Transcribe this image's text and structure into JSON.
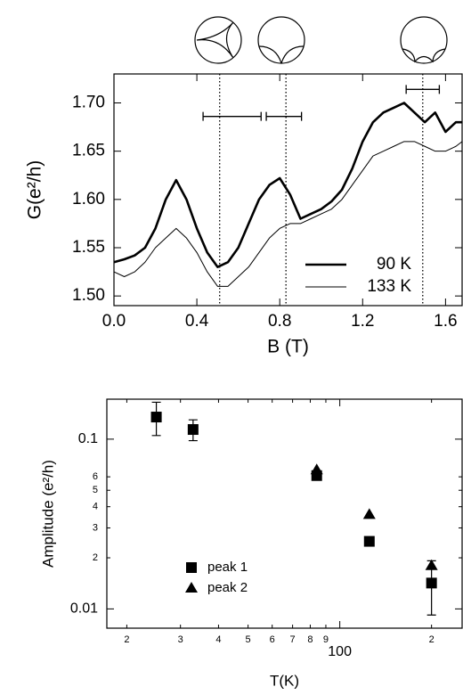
{
  "chart_data": [
    {
      "type": "line",
      "x_label": "B (T)",
      "y_label": "G(e²/h)",
      "x": [
        0,
        0.05,
        0.1,
        0.15,
        0.2,
        0.25,
        0.3,
        0.35,
        0.4,
        0.45,
        0.5,
        0.55,
        0.6,
        0.65,
        0.7,
        0.75,
        0.8,
        0.85,
        0.9,
        0.95,
        1.0,
        1.05,
        1.1,
        1.15,
        1.2,
        1.25,
        1.3,
        1.35,
        1.4,
        1.45,
        1.5,
        1.55,
        1.6,
        1.65,
        1.68
      ],
      "series": [
        {
          "name": "90 K",
          "color": "#000000",
          "values": [
            1.535,
            1.538,
            1.542,
            1.55,
            1.57,
            1.6,
            1.62,
            1.6,
            1.57,
            1.545,
            1.53,
            1.535,
            1.55,
            1.575,
            1.6,
            1.615,
            1.622,
            1.605,
            1.58,
            1.585,
            1.59,
            1.598,
            1.61,
            1.632,
            1.66,
            1.68,
            1.69,
            1.695,
            1.7,
            1.69,
            1.68,
            1.69,
            1.67,
            1.68,
            1.68
          ]
        },
        {
          "name": "133 K",
          "color": "#000000",
          "values": [
            1.525,
            1.52,
            1.525,
            1.535,
            1.55,
            1.56,
            1.57,
            1.56,
            1.545,
            1.525,
            1.51,
            1.51,
            1.52,
            1.53,
            1.545,
            1.56,
            1.57,
            1.575,
            1.575,
            1.58,
            1.585,
            1.59,
            1.6,
            1.615,
            1.63,
            1.645,
            1.65,
            1.655,
            1.66,
            1.66,
            1.655,
            1.65,
            1.65,
            1.655,
            1.66
          ]
        }
      ],
      "xlim": [
        0,
        1.68
      ],
      "ylim": [
        1.49,
        1.73
      ],
      "xticks": [
        {
          "value": 0,
          "label": "0.0"
        },
        0.4,
        0.8,
        1.2,
        1.6
      ],
      "yticks": [
        {
          "value": 1.5,
          "label": "1.50"
        },
        1.55,
        {
          "value": 1.6,
          "label": "1.60"
        },
        1.65,
        {
          "value": 1.7,
          "label": "1.70"
        }
      ],
      "vlines": [
        0.51,
        0.83,
        1.49
      ],
      "hbars": [
        {
          "x": 0.57,
          "y": 1.686,
          "err": 0.14
        },
        {
          "x": 0.82,
          "y": 1.686,
          "err": 0.085
        },
        {
          "x": 1.49,
          "y": 1.714,
          "err": 0.08
        }
      ],
      "legend": "lower right"
    },
    {
      "type": "scatter",
      "x_label": "T(K)",
      "y_label": "Amplitude (e²/h)",
      "log_x": true,
      "log_y": true,
      "series": [
        {
          "name": "peak 1",
          "marker": "square",
          "color": "#000000",
          "x": [
            25,
            33,
            84,
            125,
            200
          ],
          "values": [
            0.135,
            0.114,
            0.061,
            0.025,
            0.0142
          ],
          "errors": [
            0.03,
            0.016,
            null,
            null,
            0.005
          ]
        },
        {
          "name": "peak 2",
          "marker": "triangle",
          "color": "#000000",
          "x": [
            84,
            125,
            200
          ],
          "values": [
            0.066,
            0.036,
            0.018
          ]
        }
      ],
      "xlim": [
        17.2,
        252
      ],
      "ylim": [
        0.0077,
        0.172
      ],
      "xticks": [
        {
          "value": 20,
          "label": "2"
        },
        {
          "value": 30,
          "label": "3"
        },
        {
          "value": 40,
          "label": "4"
        },
        {
          "value": 50,
          "label": "5"
        },
        {
          "value": 60,
          "label": "6"
        },
        {
          "value": 70,
          "label": "7"
        },
        {
          "value": 80,
          "label": "8"
        },
        {
          "value": 90,
          "label": "9"
        },
        100,
        {
          "value": 200,
          "label": "2"
        }
      ],
      "yticks": [
        {
          "value": 0.01,
          "label": "0.01"
        },
        {
          "value": 0.02,
          "label": "2"
        },
        {
          "value": 0.03,
          "label": "3"
        },
        {
          "value": 0.04,
          "label": "4"
        },
        {
          "value": 0.05,
          "label": "5"
        },
        {
          "value": 0.06,
          "label": "6"
        },
        0.1
      ],
      "legend": "lower left"
    }
  ]
}
